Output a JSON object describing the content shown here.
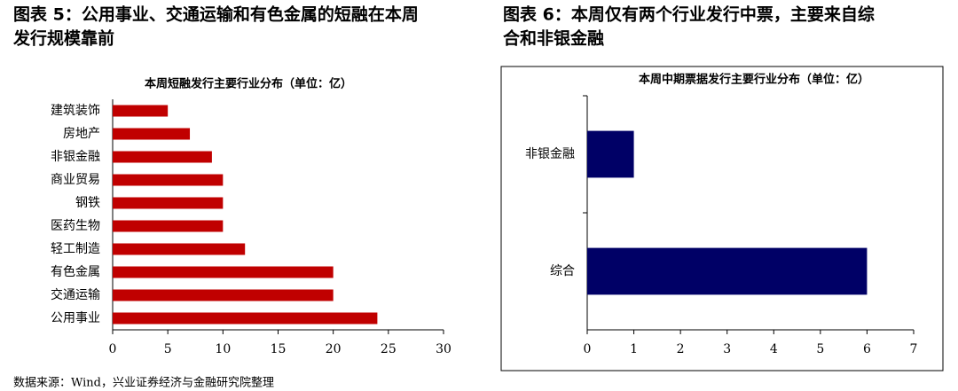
{
  "figures": [
    {
      "caption": [
        "图表 5：公用事业、交通运输和有色金属的短融在本周",
        "发行规模靠前"
      ]
    },
    {
      "caption": [
        "图表 6：本周仅有两个行业发行中票，主要来自综",
        "合和非银金融"
      ]
    }
  ],
  "chart_data": [
    {
      "type": "bar",
      "horizontal": true,
      "title": "本周短融发行主要行业分布（单位：亿）",
      "categories": [
        "建筑装饰",
        "房地产",
        "非银金融",
        "商业贸易",
        "钢铁",
        "医药生物",
        "轻工制造",
        "有色金属",
        "交通运输",
        "公用事业"
      ],
      "values": [
        5,
        7,
        9,
        10,
        10,
        10,
        12,
        20,
        20,
        24
      ],
      "color": "#c00000",
      "xlim": [
        0,
        30
      ],
      "xticks": [
        0,
        5,
        10,
        15,
        20,
        25,
        30
      ],
      "border": false
    },
    {
      "type": "bar",
      "horizontal": true,
      "title": "本周中期票据发行主要行业分布（单位：亿）",
      "categories": [
        "非银金融",
        "综合"
      ],
      "values": [
        1,
        6
      ],
      "color": "#000066",
      "xlim": [
        0,
        7
      ],
      "xticks": [
        0,
        1,
        2,
        3,
        4,
        5,
        6,
        7
      ],
      "border": true
    }
  ],
  "source": "数据来源：Wind，兴业证券经济与金融研究院整理"
}
